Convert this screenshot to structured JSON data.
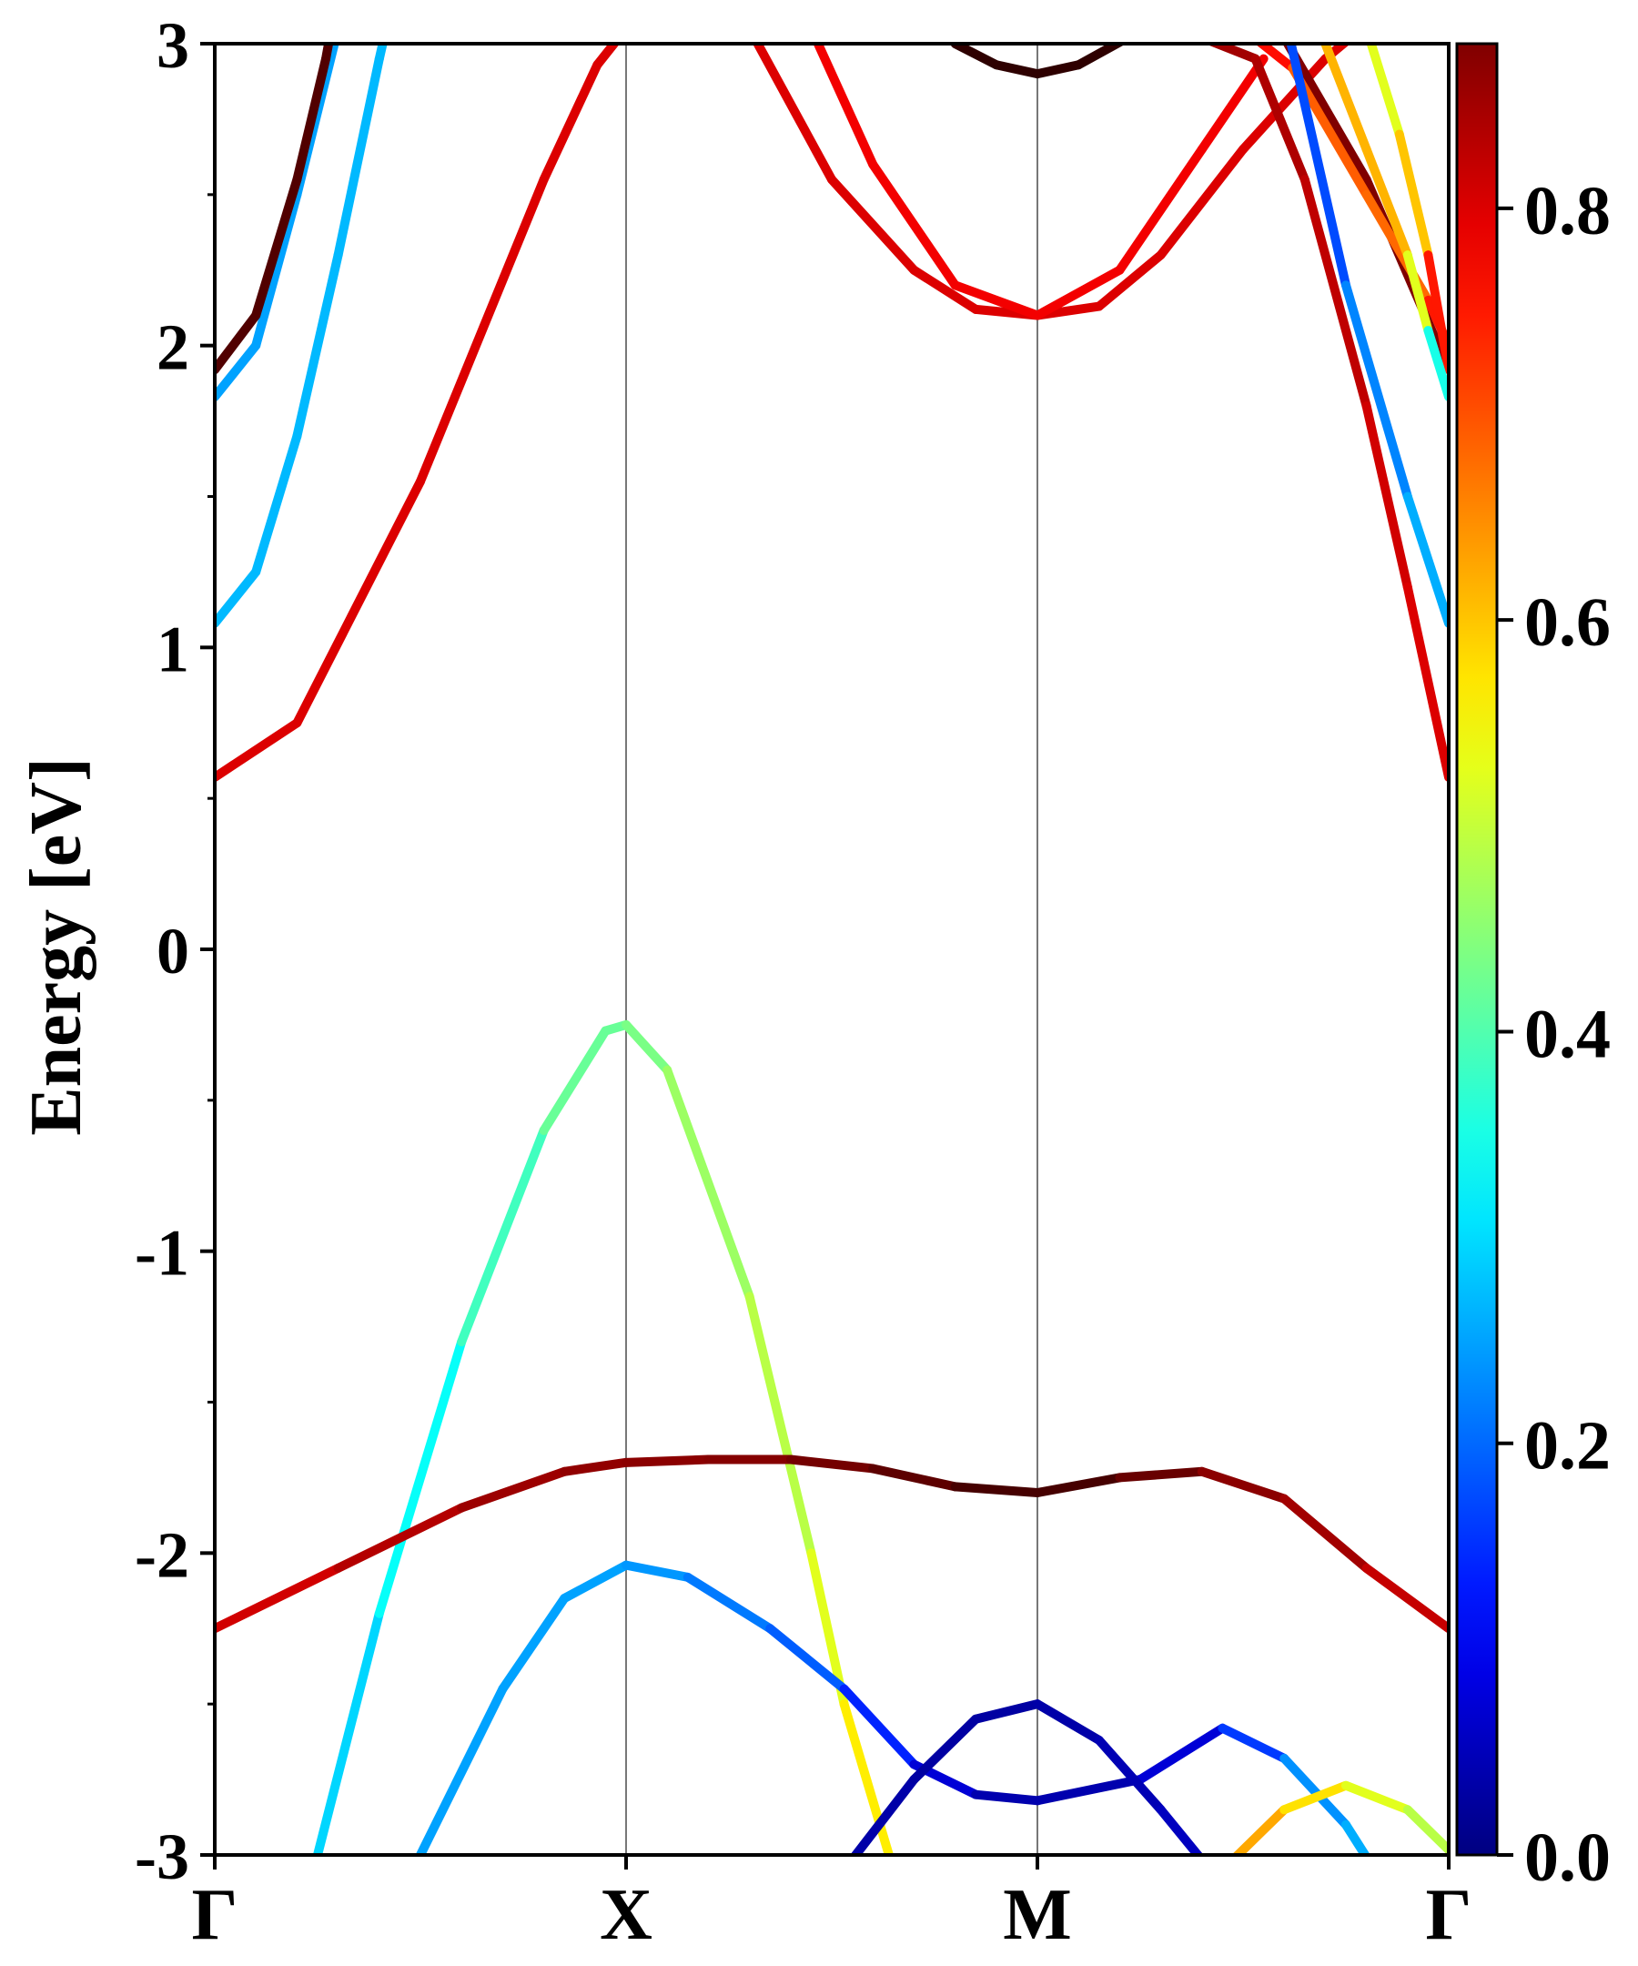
{
  "chart_data": {
    "type": "line",
    "title": "",
    "xlabel": "",
    "ylabel": "Energy [eV]",
    "ylim": [
      -3,
      3
    ],
    "yticks": [
      -3,
      -2,
      -1,
      0,
      1,
      2,
      3
    ],
    "yticks_labels": [
      "-3",
      "-2",
      "-1",
      "0",
      "1",
      "2",
      "3"
    ],
    "xlim": [
      0,
      3
    ],
    "xticks": [
      0,
      1,
      2,
      3
    ],
    "xtick_labels": [
      "Γ",
      "X",
      "M",
      "Γ"
    ],
    "grid": "vertical lines at high-symmetry points",
    "colorbar": {
      "range": [
        0,
        0.88
      ],
      "ticks": [
        0,
        0.2,
        0.4,
        0.6,
        0.8
      ],
      "tick_labels": [
        "0.0",
        "0.2",
        "0.4",
        "0.6",
        "0.8"
      ],
      "colormap": "jet",
      "placement": "right"
    },
    "series": [
      {
        "points": [
          [
            0,
            0.57
          ],
          [
            0.2,
            0.75
          ],
          [
            0.5,
            1.55
          ],
          [
            0.8,
            2.55
          ],
          [
            0.93,
            2.93
          ],
          [
            1,
            3.05
          ]
        ],
        "weights": [
          0.8
        ]
      },
      {
        "points": [
          [
            0,
            1.08
          ],
          [
            0.1,
            1.25
          ],
          [
            0.2,
            1.7
          ],
          [
            0.3,
            2.3
          ],
          [
            0.4,
            2.95
          ],
          [
            0.45,
            3.25
          ]
        ],
        "weights": [
          0.27
        ]
      },
      {
        "points": [
          [
            0,
            1.83
          ],
          [
            0.1,
            2.0
          ],
          [
            0.2,
            2.5
          ],
          [
            0.3,
            3.05
          ]
        ],
        "weights": [
          0.25
        ]
      },
      {
        "points": [
          [
            0,
            1.92
          ],
          [
            0.1,
            2.1
          ],
          [
            0.2,
            2.55
          ],
          [
            0.27,
            2.95
          ],
          [
            0.29,
            3.1
          ]
        ],
        "weights": [
          0.92
        ]
      },
      {
        "points": [
          [
            0.25,
            -3.0
          ],
          [
            0.4,
            -2.2
          ],
          [
            0.6,
            -1.3
          ],
          [
            0.8,
            -0.6
          ],
          [
            0.95,
            -0.27
          ],
          [
            1,
            -0.25
          ],
          [
            1.1,
            -0.4
          ],
          [
            1.3,
            -1.15
          ],
          [
            1.45,
            -2.0
          ],
          [
            1.53,
            -2.5
          ],
          [
            1.65,
            -3.05
          ]
        ],
        "weights": [
          0.27,
          0.32,
          0.35,
          0.42,
          0.42,
          0.42,
          0.45,
          0.48,
          0.5,
          0.55,
          0.58
        ]
      },
      {
        "points": [
          [
            0.5,
            -3.0
          ],
          [
            0.7,
            -2.45
          ],
          [
            0.85,
            -2.15
          ],
          [
            1,
            -2.04
          ],
          [
            1.15,
            -2.08
          ],
          [
            1.35,
            -2.25
          ],
          [
            1.53,
            -2.45
          ],
          [
            1.7,
            -2.7
          ],
          [
            1.85,
            -2.8
          ],
          [
            2,
            -2.82
          ],
          [
            2.25,
            -2.75
          ],
          [
            2.45,
            -2.58
          ],
          [
            2.6,
            -2.68
          ],
          [
            2.75,
            -2.9
          ],
          [
            2.82,
            -3.05
          ]
        ],
        "weights": [
          0.25,
          0.25,
          0.25,
          0.25,
          0.23,
          0.2,
          0.18,
          0.1,
          0.05,
          0.03,
          0.05,
          0.1,
          0.22,
          0.25,
          0.27
        ]
      },
      {
        "points": [
          [
            1.53,
            -3.05
          ],
          [
            1.7,
            -2.75
          ],
          [
            1.85,
            -2.55
          ],
          [
            2,
            -2.5
          ],
          [
            2.15,
            -2.62
          ],
          [
            2.3,
            -2.85
          ],
          [
            2.42,
            -3.05
          ]
        ],
        "weights": [
          0.04,
          0.03,
          0.03,
          0.03,
          0.04,
          0.05,
          0.06
        ]
      },
      {
        "points": [
          [
            2.45,
            -3.05
          ],
          [
            2.6,
            -2.85
          ],
          [
            2.75,
            -2.77
          ],
          [
            2.9,
            -2.85
          ],
          [
            3.05,
            -3.05
          ]
        ],
        "weights": [
          0.65,
          0.6,
          0.55,
          0.5,
          0.48
        ]
      },
      {
        "points": [
          [
            0,
            -2.25
          ],
          [
            0.3,
            -2.05
          ],
          [
            0.6,
            -1.85
          ],
          [
            0.85,
            -1.73
          ],
          [
            1,
            -1.7
          ],
          [
            1.2,
            -1.69
          ],
          [
            1.4,
            -1.69
          ],
          [
            1.6,
            -1.72
          ],
          [
            1.8,
            -1.78
          ],
          [
            2,
            -1.8
          ],
          [
            2.2,
            -1.75
          ],
          [
            2.4,
            -1.73
          ],
          [
            2.6,
            -1.82
          ],
          [
            2.8,
            -2.05
          ],
          [
            3,
            -2.25
          ]
        ],
        "weights": [
          0.8,
          0.82,
          0.85,
          0.86,
          0.87,
          0.87,
          0.88,
          0.9,
          0.92,
          0.94,
          0.92,
          0.88,
          0.86,
          0.84,
          0.8
        ]
      },
      {
        "points": [
          [
            1.3,
            3.05
          ],
          [
            1.5,
            2.55
          ],
          [
            1.7,
            2.25
          ],
          [
            1.85,
            2.12
          ],
          [
            2,
            2.1
          ],
          [
            2.15,
            2.13
          ],
          [
            2.3,
            2.3
          ],
          [
            2.5,
            2.65
          ],
          [
            2.7,
            2.95
          ],
          [
            2.85,
            3.12
          ]
        ],
        "weights": [
          0.8
        ]
      },
      {
        "points": [
          [
            1.45,
            3.05
          ],
          [
            1.6,
            2.6
          ],
          [
            1.8,
            2.2
          ],
          [
            2,
            2.1
          ],
          [
            2.2,
            2.25
          ],
          [
            2.4,
            2.65
          ],
          [
            2.55,
            2.95
          ]
        ],
        "weights": [
          0.78
        ]
      },
      {
        "points": [
          [
            1.8,
            3.0
          ],
          [
            1.9,
            2.93
          ],
          [
            2,
            2.9
          ],
          [
            2.1,
            2.93
          ],
          [
            2.22,
            3.02
          ]
        ],
        "weights": [
          0.95
        ]
      },
      {
        "points": [
          [
            2.4,
            3.02
          ],
          [
            2.53,
            2.95
          ],
          [
            2.65,
            2.55
          ],
          [
            2.8,
            1.8
          ],
          [
            2.9,
            1.2
          ],
          [
            3,
            0.57
          ]
        ],
        "weights": [
          0.85,
          0.85,
          0.83,
          0.82,
          0.8,
          0.8
        ]
      },
      {
        "points": [
          [
            2.6,
            3.02
          ],
          [
            2.8,
            2.55
          ],
          [
            3,
            1.92
          ]
        ],
        "weights": [
          0.88
        ]
      },
      {
        "points": [
          [
            2.5,
            3.05
          ],
          [
            2.62,
            2.92
          ],
          [
            2.8,
            2.5
          ],
          [
            2.95,
            2.15
          ],
          [
            3,
            2.0
          ]
        ],
        "weights": [
          0.8,
          0.72,
          0.66,
          0.7,
          0.8
        ]
      },
      {
        "points": [
          [
            2.8,
            3.05
          ],
          [
            2.88,
            2.7
          ],
          [
            2.95,
            2.3
          ],
          [
            3,
            1.92
          ]
        ],
        "weights": [
          0.5,
          0.55,
          0.65,
          0.85
        ]
      },
      {
        "points": [
          [
            2.7,
            3.0
          ],
          [
            2.8,
            2.65
          ],
          [
            2.9,
            2.3
          ],
          [
            2.95,
            2.05
          ],
          [
            3,
            1.83
          ]
        ],
        "weights": [
          0.6,
          0.63,
          0.6,
          0.45,
          0.25
        ]
      },
      {
        "points": [
          [
            2.6,
            3.1
          ],
          [
            2.75,
            2.2
          ],
          [
            2.9,
            1.5
          ],
          [
            3,
            1.08
          ]
        ],
        "weights": [
          0.15,
          0.2,
          0.25,
          0.27
        ]
      }
    ]
  }
}
